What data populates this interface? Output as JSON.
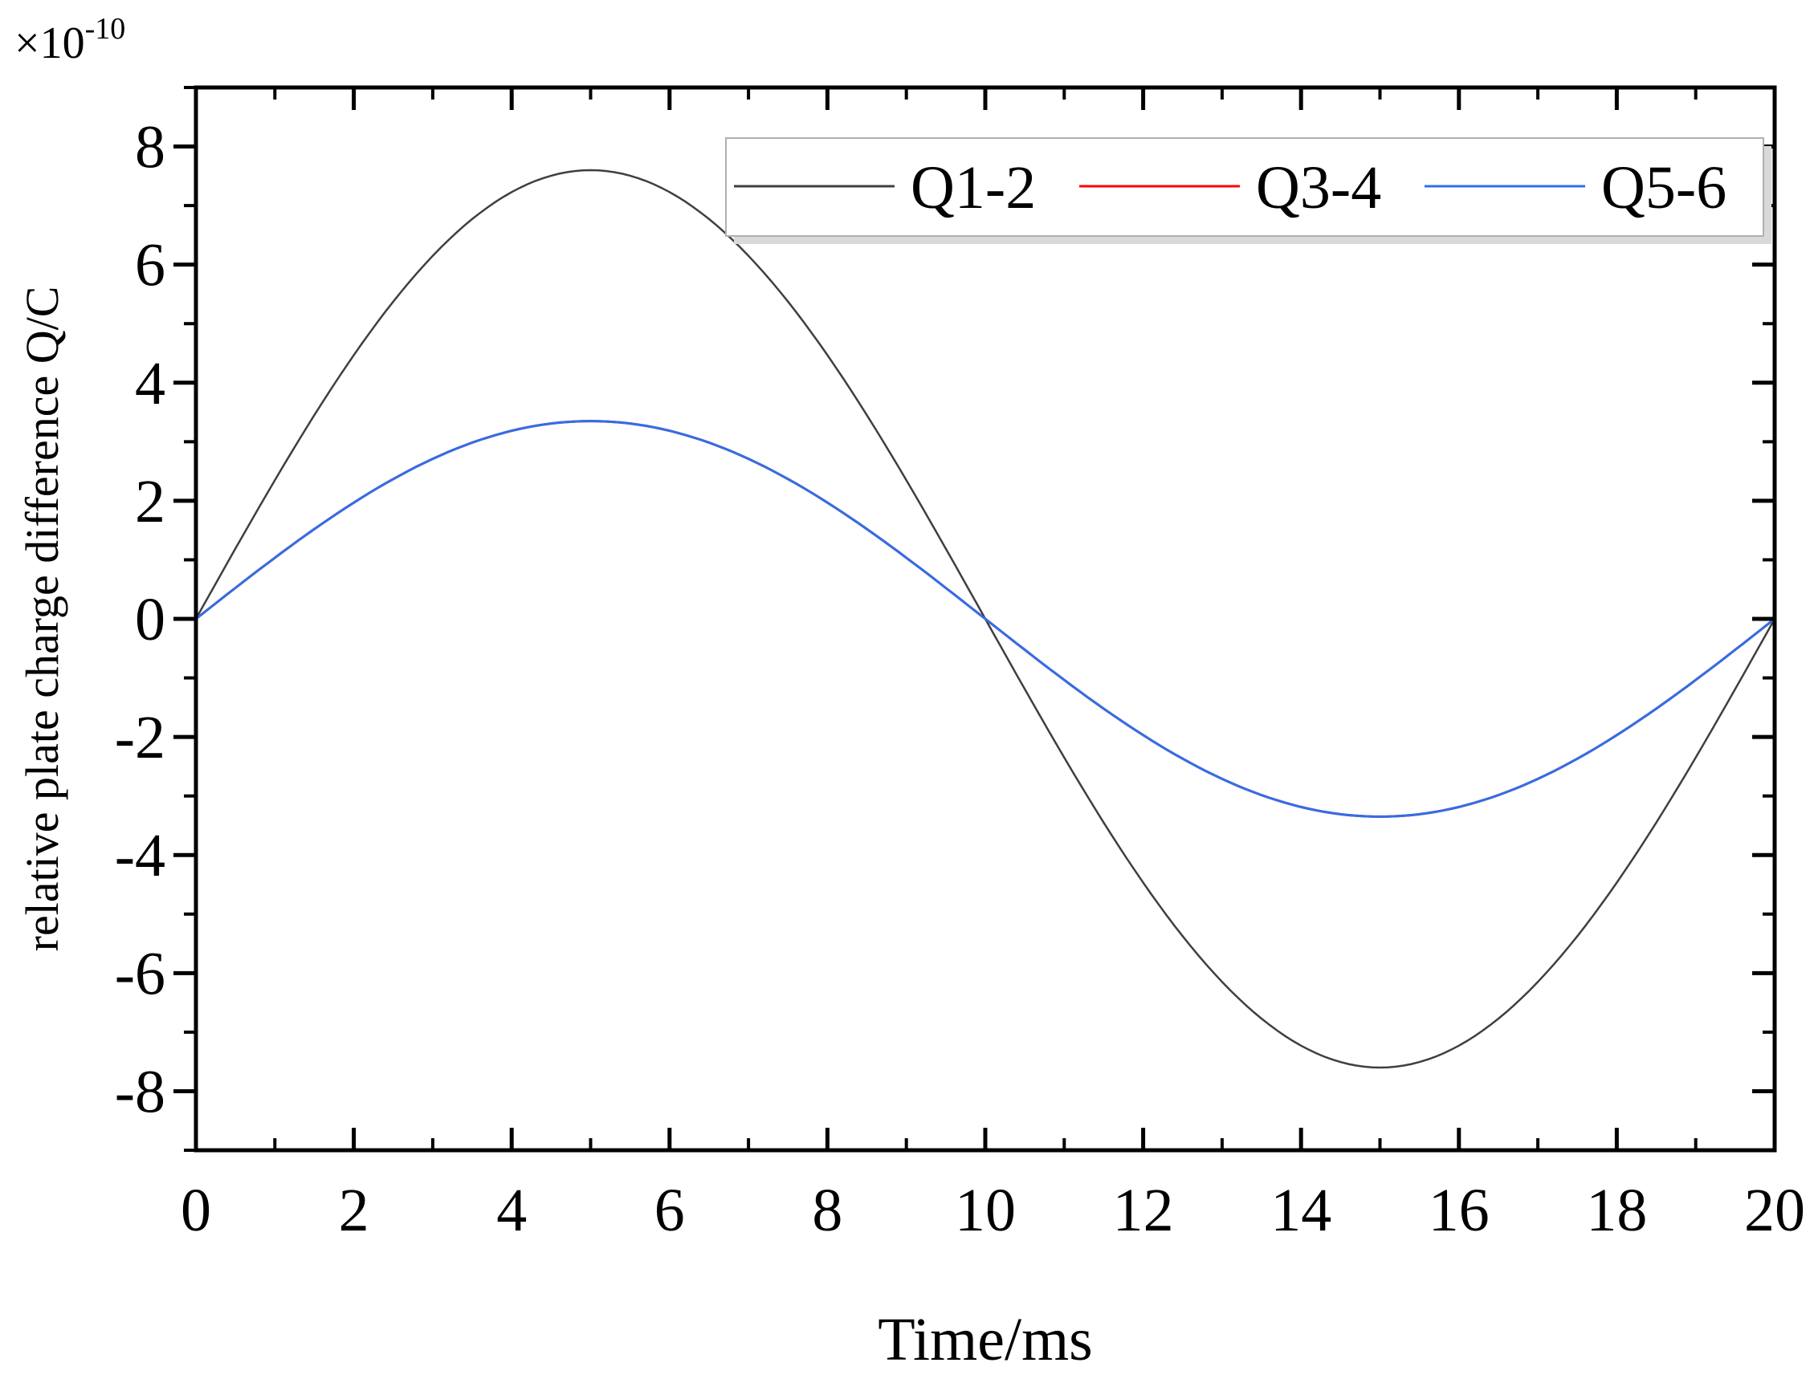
{
  "chart_data": {
    "type": "line",
    "xlabel": "Time/ms",
    "ylabel": "relative plate charge difference Q/C",
    "y_multiplier": "×10",
    "y_multiplier_exponent": "-10",
    "xlim": [
      0,
      20
    ],
    "ylim": [
      -9,
      9
    ],
    "x_ticks": [
      "0",
      "2",
      "4",
      "6",
      "8",
      "10",
      "12",
      "14",
      "16",
      "18",
      "20"
    ],
    "x_tick_values": [
      0,
      2,
      4,
      6,
      8,
      10,
      12,
      14,
      16,
      18,
      20
    ],
    "y_ticks": [
      "8",
      "6",
      "4",
      "2",
      "0",
      "-2",
      "-4",
      "-6",
      "-8"
    ],
    "y_tick_values": [
      8,
      6,
      4,
      2,
      0,
      -2,
      -4,
      -6,
      -8
    ],
    "grid": false,
    "legend_position": "top-right",
    "x": [
      0,
      1,
      2,
      3,
      4,
      5,
      6,
      7,
      8,
      9,
      10,
      11,
      12,
      13,
      14,
      15,
      16,
      17,
      18,
      19,
      20
    ],
    "series": [
      {
        "name": "Q1-2",
        "color": "#3f3f3f",
        "values": [
          0,
          2.35,
          4.47,
          6.15,
          7.23,
          7.6,
          7.23,
          6.15,
          4.47,
          2.35,
          0,
          -2.35,
          -4.47,
          -6.15,
          -7.23,
          -7.6,
          -7.23,
          -6.15,
          -4.47,
          -2.35,
          0
        ]
      },
      {
        "name": "Q3-4",
        "color": "#ff0000",
        "values": [
          0,
          1.04,
          1.97,
          2.71,
          3.19,
          3.35,
          3.19,
          2.71,
          1.97,
          1.04,
          0,
          -1.04,
          -1.97,
          -2.71,
          -3.19,
          -3.35,
          -3.19,
          -2.71,
          -1.97,
          -1.04,
          0
        ]
      },
      {
        "name": "Q5-6",
        "color": "#2f6fe8",
        "values": [
          0,
          1.04,
          1.97,
          2.71,
          3.19,
          3.35,
          3.19,
          2.71,
          1.97,
          1.04,
          0,
          -1.04,
          -1.97,
          -2.71,
          -3.19,
          -3.35,
          -3.19,
          -2.71,
          -1.97,
          -1.04,
          0
        ]
      }
    ]
  }
}
